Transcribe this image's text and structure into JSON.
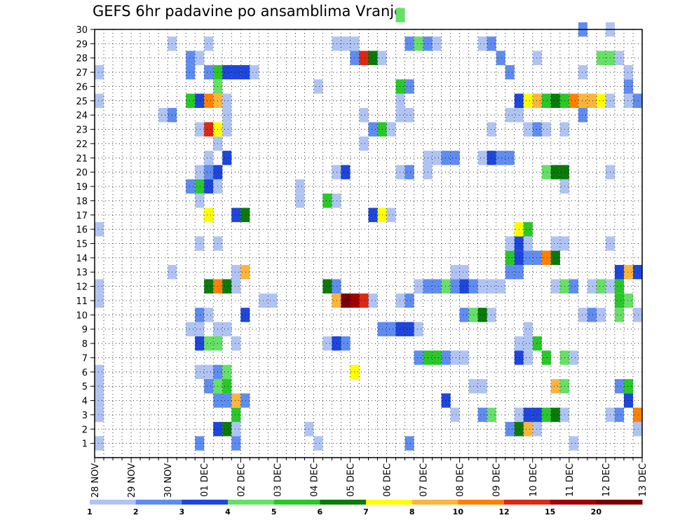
{
  "title": "GEFS 6hr padavine po ansamblima Vranje",
  "chart_data": {
    "type": "heatmap",
    "title": "GEFS 6hr padavine po ansamblima Vranje",
    "y_ticks": [
      "1",
      "2",
      "3",
      "4",
      "5",
      "6",
      "7",
      "8",
      "9",
      "10",
      "11",
      "12",
      "13",
      "14",
      "15",
      "16",
      "17",
      "18",
      "19",
      "20",
      "21",
      "22",
      "23",
      "24",
      "25",
      "26",
      "27",
      "28",
      "29",
      "30"
    ],
    "ylim": [
      0,
      30
    ],
    "x_ticks": [
      "28 NOV",
      "29 NOV",
      "30 NOV",
      "01 DEC",
      "02 DEC",
      "03 DEC",
      "04 DEC",
      "05 DEC",
      "06 DEC",
      "07 DEC",
      "08 DEC",
      "09 DEC",
      "10 DEC",
      "11 DEC",
      "12 DEC",
      "13 DEC"
    ],
    "x_steps_per_day": 4,
    "x_total_steps": 60,
    "grid": true,
    "color_levels": [
      1,
      2,
      3,
      4,
      5,
      6,
      7,
      8,
      10,
      12,
      15,
      20
    ],
    "color_palette": [
      "#b0c4f4",
      "#5f8cf0",
      "#1e46dc",
      "#66e066",
      "#28c828",
      "#0a7a0a",
      "#ffff00",
      "#ffb43c",
      "#ff8000",
      "#dc2814",
      "#a00000",
      "#7a0000"
    ],
    "cells": [
      [
        0,
        0,
        1
      ],
      [
        11,
        0,
        2
      ],
      [
        15,
        0,
        2
      ],
      [
        24,
        0,
        1
      ],
      [
        34,
        0,
        2
      ],
      [
        52,
        0,
        1
      ],
      [
        13,
        1,
        3
      ],
      [
        14,
        1,
        6
      ],
      [
        15,
        1,
        1
      ],
      [
        23,
        1,
        1
      ],
      [
        45,
        1,
        2
      ],
      [
        46,
        1,
        6
      ],
      [
        47,
        1,
        8
      ],
      [
        48,
        1,
        1
      ],
      [
        59,
        1,
        1
      ],
      [
        0,
        2,
        1
      ],
      [
        15,
        2,
        5
      ],
      [
        39,
        2,
        1
      ],
      [
        42,
        2,
        2
      ],
      [
        43,
        2,
        4
      ],
      [
        46,
        2,
        1
      ],
      [
        47,
        2,
        3
      ],
      [
        48,
        2,
        3
      ],
      [
        49,
        2,
        5
      ],
      [
        50,
        2,
        6
      ],
      [
        51,
        2,
        1
      ],
      [
        56,
        2,
        1
      ],
      [
        57,
        2,
        2
      ],
      [
        59,
        2,
        9
      ],
      [
        0,
        3,
        1
      ],
      [
        13,
        3,
        2
      ],
      [
        14,
        3,
        2
      ],
      [
        15,
        3,
        8
      ],
      [
        16,
        3,
        2
      ],
      [
        38,
        3,
        3
      ],
      [
        58,
        3,
        3
      ],
      [
        0,
        4,
        1
      ],
      [
        12,
        4,
        2
      ],
      [
        13,
        4,
        4
      ],
      [
        14,
        4,
        5
      ],
      [
        41,
        4,
        1
      ],
      [
        42,
        4,
        1
      ],
      [
        50,
        4,
        8
      ],
      [
        51,
        4,
        4
      ],
      [
        57,
        4,
        2
      ],
      [
        58,
        4,
        5
      ],
      [
        0,
        5,
        1
      ],
      [
        11,
        5,
        1
      ],
      [
        12,
        5,
        1
      ],
      [
        13,
        5,
        2
      ],
      [
        14,
        5,
        4
      ],
      [
        28,
        5,
        7
      ],
      [
        35,
        6,
        2
      ],
      [
        36,
        6,
        5
      ],
      [
        37,
        6,
        5
      ],
      [
        38,
        6,
        2
      ],
      [
        39,
        6,
        1
      ],
      [
        40,
        6,
        1
      ],
      [
        46,
        6,
        3
      ],
      [
        47,
        6,
        1
      ],
      [
        49,
        6,
        5
      ],
      [
        51,
        6,
        4
      ],
      [
        52,
        6,
        1
      ],
      [
        11,
        7,
        3
      ],
      [
        12,
        7,
        4
      ],
      [
        13,
        7,
        4
      ],
      [
        15,
        7,
        1
      ],
      [
        25,
        7,
        1
      ],
      [
        26,
        7,
        3
      ],
      [
        27,
        7,
        2
      ],
      [
        46,
        7,
        1
      ],
      [
        47,
        7,
        1
      ],
      [
        48,
        7,
        5
      ],
      [
        10,
        8,
        1
      ],
      [
        11,
        8,
        1
      ],
      [
        13,
        8,
        1
      ],
      [
        14,
        8,
        1
      ],
      [
        31,
        8,
        2
      ],
      [
        32,
        8,
        2
      ],
      [
        33,
        8,
        3
      ],
      [
        34,
        8,
        3
      ],
      [
        35,
        8,
        1
      ],
      [
        47,
        8,
        1
      ],
      [
        11,
        9,
        2
      ],
      [
        12,
        9,
        1
      ],
      [
        16,
        9,
        3
      ],
      [
        40,
        9,
        2
      ],
      [
        41,
        9,
        4
      ],
      [
        42,
        9,
        6
      ],
      [
        43,
        9,
        1
      ],
      [
        53,
        9,
        1
      ],
      [
        54,
        9,
        2
      ],
      [
        55,
        9,
        1
      ],
      [
        57,
        9,
        4
      ],
      [
        59,
        9,
        1
      ],
      [
        0,
        10,
        1
      ],
      [
        18,
        10,
        1
      ],
      [
        19,
        10,
        1
      ],
      [
        26,
        10,
        8
      ],
      [
        27,
        10,
        12
      ],
      [
        28,
        10,
        11
      ],
      [
        29,
        10,
        10
      ],
      [
        30,
        10,
        1
      ],
      [
        33,
        10,
        1
      ],
      [
        34,
        10,
        2
      ],
      [
        57,
        10,
        5
      ],
      [
        58,
        10,
        4
      ],
      [
        0,
        11,
        1
      ],
      [
        12,
        11,
        6
      ],
      [
        13,
        11,
        9
      ],
      [
        14,
        11,
        6
      ],
      [
        15,
        11,
        1
      ],
      [
        25,
        11,
        6
      ],
      [
        26,
        11,
        2
      ],
      [
        35,
        11,
        1
      ],
      [
        36,
        11,
        2
      ],
      [
        37,
        11,
        2
      ],
      [
        38,
        11,
        4
      ],
      [
        39,
        11,
        2
      ],
      [
        40,
        11,
        3
      ],
      [
        41,
        11,
        2
      ],
      [
        42,
        11,
        1
      ],
      [
        43,
        11,
        1
      ],
      [
        44,
        11,
        1
      ],
      [
        50,
        11,
        1
      ],
      [
        51,
        11,
        4
      ],
      [
        52,
        11,
        2
      ],
      [
        54,
        11,
        1
      ],
      [
        55,
        11,
        4
      ],
      [
        56,
        11,
        1
      ],
      [
        57,
        11,
        5
      ],
      [
        8,
        12,
        1
      ],
      [
        15,
        12,
        1
      ],
      [
        16,
        12,
        8
      ],
      [
        39,
        12,
        1
      ],
      [
        40,
        12,
        1
      ],
      [
        45,
        12,
        2
      ],
      [
        46,
        12,
        2
      ],
      [
        57,
        12,
        3
      ],
      [
        58,
        12,
        8
      ],
      [
        59,
        12,
        3
      ],
      [
        45,
        13,
        5
      ],
      [
        46,
        13,
        3
      ],
      [
        47,
        13,
        2
      ],
      [
        48,
        13,
        2
      ],
      [
        49,
        13,
        9
      ],
      [
        50,
        13,
        6
      ],
      [
        11,
        14,
        1
      ],
      [
        13,
        14,
        1
      ],
      [
        45,
        14,
        1
      ],
      [
        46,
        14,
        3
      ],
      [
        47,
        14,
        1
      ],
      [
        50,
        14,
        1
      ],
      [
        51,
        14,
        1
      ],
      [
        56,
        14,
        1
      ],
      [
        0,
        15,
        1
      ],
      [
        46,
        15,
        7
      ],
      [
        47,
        15,
        5
      ],
      [
        12,
        16,
        7
      ],
      [
        15,
        16,
        3
      ],
      [
        16,
        16,
        6
      ],
      [
        30,
        16,
        3
      ],
      [
        31,
        16,
        7
      ],
      [
        32,
        16,
        1
      ],
      [
        11,
        17,
        1
      ],
      [
        22,
        17,
        1
      ],
      [
        25,
        17,
        5
      ],
      [
        26,
        17,
        1
      ],
      [
        10,
        18,
        2
      ],
      [
        11,
        18,
        5
      ],
      [
        12,
        18,
        3
      ],
      [
        13,
        18,
        1
      ],
      [
        22,
        18,
        1
      ],
      [
        51,
        18,
        1
      ],
      [
        11,
        19,
        1
      ],
      [
        12,
        19,
        2
      ],
      [
        13,
        19,
        3
      ],
      [
        26,
        19,
        1
      ],
      [
        27,
        19,
        3
      ],
      [
        33,
        19,
        1
      ],
      [
        34,
        19,
        2
      ],
      [
        36,
        19,
        1
      ],
      [
        49,
        19,
        4
      ],
      [
        50,
        19,
        6
      ],
      [
        51,
        19,
        6
      ],
      [
        56,
        19,
        1
      ],
      [
        12,
        20,
        1
      ],
      [
        14,
        20,
        3
      ],
      [
        36,
        20,
        1
      ],
      [
        37,
        20,
        1
      ],
      [
        38,
        20,
        2
      ],
      [
        39,
        20,
        2
      ],
      [
        42,
        20,
        1
      ],
      [
        43,
        20,
        3
      ],
      [
        44,
        20,
        2
      ],
      [
        45,
        20,
        2
      ],
      [
        13,
        21,
        1
      ],
      [
        29,
        21,
        1
      ],
      [
        11,
        22,
        1
      ],
      [
        12,
        22,
        10
      ],
      [
        13,
        22,
        7
      ],
      [
        14,
        22,
        1
      ],
      [
        30,
        22,
        2
      ],
      [
        31,
        22,
        5
      ],
      [
        32,
        22,
        1
      ],
      [
        43,
        22,
        1
      ],
      [
        47,
        22,
        1
      ],
      [
        48,
        22,
        2
      ],
      [
        49,
        22,
        1
      ],
      [
        51,
        22,
        1
      ],
      [
        7,
        23,
        1
      ],
      [
        8,
        23,
        2
      ],
      [
        14,
        23,
        1
      ],
      [
        29,
        23,
        1
      ],
      [
        33,
        23,
        1
      ],
      [
        34,
        23,
        1
      ],
      [
        45,
        23,
        1
      ],
      [
        46,
        23,
        1
      ],
      [
        53,
        23,
        2
      ],
      [
        0,
        24,
        1
      ],
      [
        10,
        24,
        5
      ],
      [
        11,
        24,
        3
      ],
      [
        12,
        24,
        9
      ],
      [
        13,
        24,
        8
      ],
      [
        14,
        24,
        1
      ],
      [
        33,
        24,
        1
      ],
      [
        46,
        24,
        3
      ],
      [
        47,
        24,
        7
      ],
      [
        48,
        24,
        8
      ],
      [
        49,
        24,
        5
      ],
      [
        50,
        24,
        6
      ],
      [
        51,
        24,
        5
      ],
      [
        52,
        24,
        9
      ],
      [
        53,
        24,
        8
      ],
      [
        54,
        24,
        8
      ],
      [
        55,
        24,
        7
      ],
      [
        56,
        24,
        1
      ],
      [
        58,
        24,
        1
      ],
      [
        59,
        24,
        2
      ],
      [
        13,
        25,
        4
      ],
      [
        24,
        25,
        1
      ],
      [
        33,
        25,
        5
      ],
      [
        34,
        25,
        2
      ],
      [
        58,
        25,
        2
      ],
      [
        0,
        26,
        1
      ],
      [
        10,
        26,
        2
      ],
      [
        12,
        26,
        2
      ],
      [
        13,
        26,
        5
      ],
      [
        14,
        26,
        3
      ],
      [
        15,
        26,
        3
      ],
      [
        16,
        26,
        3
      ],
      [
        17,
        26,
        1
      ],
      [
        45,
        26,
        2
      ],
      [
        53,
        26,
        1
      ],
      [
        58,
        26,
        1
      ],
      [
        10,
        27,
        2
      ],
      [
        11,
        27,
        1
      ],
      [
        28,
        27,
        2
      ],
      [
        29,
        27,
        10
      ],
      [
        30,
        27,
        6
      ],
      [
        31,
        27,
        1
      ],
      [
        44,
        27,
        2
      ],
      [
        48,
        27,
        1
      ],
      [
        55,
        27,
        4
      ],
      [
        56,
        27,
        4
      ],
      [
        57,
        27,
        1
      ],
      [
        8,
        28,
        1
      ],
      [
        12,
        28,
        1
      ],
      [
        26,
        28,
        1
      ],
      [
        27,
        28,
        1
      ],
      [
        28,
        28,
        1
      ],
      [
        34,
        28,
        2
      ],
      [
        35,
        28,
        4
      ],
      [
        36,
        28,
        2
      ],
      [
        37,
        28,
        1
      ],
      [
        42,
        28,
        1
      ],
      [
        43,
        28,
        2
      ],
      [
        53,
        29,
        2
      ],
      [
        56,
        29,
        1
      ],
      [
        33,
        30,
        4
      ]
    ]
  }
}
